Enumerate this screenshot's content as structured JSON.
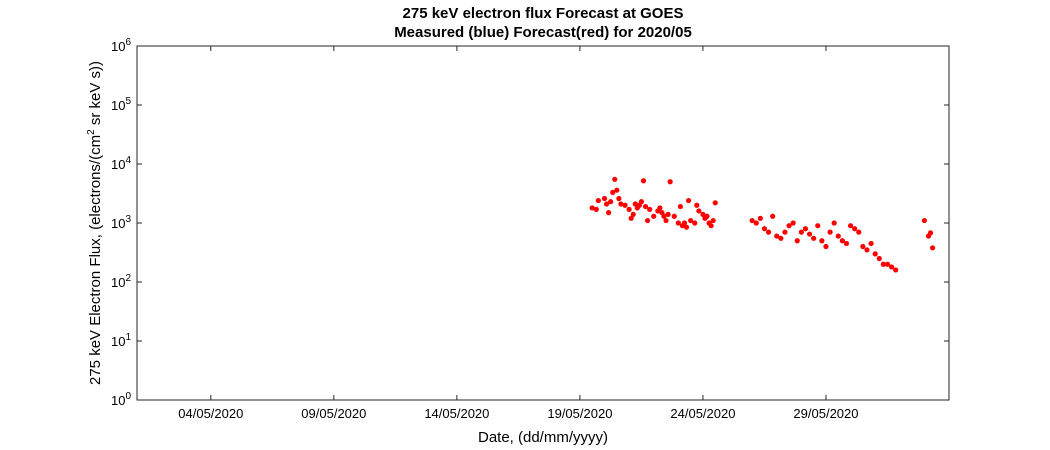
{
  "chart_data": {
    "type": "scatter",
    "title": "275 keV electron flux Forecast at GOES",
    "subtitle": "Measured (blue) Forecast(red) for 2020/05",
    "xlabel": "Date, (dd/mm/yyyy)",
    "ylabel_main": "275 keV Electron Flux, (electrons/(cm",
    "ylabel_sup": "2",
    "ylabel_rest": " sr keV s))",
    "y_scale": "log",
    "ylim": [
      1,
      1000000
    ],
    "xlim": [
      "2020-05-01",
      "2020-06-03"
    ],
    "x_ticks": [
      {
        "date": "2020-05-04",
        "label": "04/05/2020"
      },
      {
        "date": "2020-05-09",
        "label": "09/05/2020"
      },
      {
        "date": "2020-05-14",
        "label": "14/05/2020"
      },
      {
        "date": "2020-05-19",
        "label": "19/05/2020"
      },
      {
        "date": "2020-05-24",
        "label": "24/05/2020"
      },
      {
        "date": "2020-05-29",
        "label": "29/05/2020"
      }
    ],
    "y_ticks": [
      {
        "value": 1,
        "base": "10",
        "exp": "0"
      },
      {
        "value": 10,
        "base": "10",
        "exp": "1"
      },
      {
        "value": 100,
        "base": "10",
        "exp": "2"
      },
      {
        "value": 1000,
        "base": "10",
        "exp": "3"
      },
      {
        "value": 10000,
        "base": "10",
        "exp": "4"
      },
      {
        "value": 100000,
        "base": "10",
        "exp": "5"
      },
      {
        "value": 1000000,
        "base": "10",
        "exp": "6"
      }
    ],
    "grid": false,
    "marker_color": "#ff0000",
    "series": [
      {
        "marker": "dot",
        "x": [
          "2020-05-19 12:00",
          "2020-05-19 16:00",
          "2020-05-19 18:00",
          "2020-05-20 00:00",
          "2020-05-20 04:00",
          "2020-05-20 06:00",
          "2020-05-20 08:00",
          "2020-05-20 10:00",
          "2020-05-20 14:00",
          "2020-05-20 16:00",
          "2020-05-20 20:00",
          "2020-05-21 00:00",
          "2020-05-21 04:00",
          "2020-05-21 06:00",
          "2020-05-21 08:00",
          "2020-05-21 10:00",
          "2020-05-21 12:00",
          "2020-05-21 14:00",
          "2020-05-21 16:00",
          "2020-05-21 20:00",
          "2020-05-22 00:00",
          "2020-05-22 04:00",
          "2020-05-22 06:00",
          "2020-05-22 08:00",
          "2020-05-22 10:00",
          "2020-05-22 12:00",
          "2020-05-22 16:00",
          "2020-05-22 20:00",
          "2020-05-23 00:00",
          "2020-05-23 04:00",
          "2020-05-23 06:00",
          "2020-05-23 08:00",
          "2020-05-23 12:00",
          "2020-05-23 16:00",
          "2020-05-23 20:00",
          "2020-05-24 00:00",
          "2020-05-24 02:00",
          "2020-05-24 06:00",
          "2020-05-24 08:00",
          "2020-05-24 10:00",
          "2020-05-24 12:00",
          "2020-05-20 02:00",
          "2020-05-20 12:00",
          "2020-05-21 02:00",
          "2020-05-21 18:00",
          "2020-05-22 14:00",
          "2020-05-23 02:00",
          "2020-05-23 10:00",
          "2020-05-23 18:00",
          "2020-05-24 04:00",
          "2020-05-26 00:00",
          "2020-05-26 04:00",
          "2020-05-26 08:00",
          "2020-05-26 12:00",
          "2020-05-26 16:00",
          "2020-05-26 20:00",
          "2020-05-27 00:00",
          "2020-05-27 04:00",
          "2020-05-27 08:00",
          "2020-05-27 12:00",
          "2020-05-27 16:00",
          "2020-05-27 20:00",
          "2020-05-28 00:00",
          "2020-05-28 04:00",
          "2020-05-28 08:00",
          "2020-05-28 12:00",
          "2020-05-28 16:00",
          "2020-05-28 20:00",
          "2020-05-29 00:00",
          "2020-05-29 04:00",
          "2020-05-29 08:00",
          "2020-05-29 12:00",
          "2020-05-29 16:00",
          "2020-05-29 20:00",
          "2020-05-30 00:00",
          "2020-05-30 04:00",
          "2020-05-30 08:00",
          "2020-05-30 12:00",
          "2020-05-30 16:00",
          "2020-05-30 20:00",
          "2020-05-31 00:00",
          "2020-05-31 04:00",
          "2020-05-31 08:00",
          "2020-05-31 12:00",
          "2020-05-31 16:00",
          "2020-05-31 20:00",
          "2020-06-02 00:00",
          "2020-06-02 04:00",
          "2020-06-02 06:00",
          "2020-06-02 08:00"
        ],
        "y": [
          1800,
          1700,
          2400,
          2600,
          1500,
          2300,
          3300,
          5500,
          2600,
          2100,
          2000,
          1700,
          1400,
          2100,
          1800,
          2000,
          2300,
          5200,
          1900,
          1700,
          1300,
          1600,
          1800,
          1500,
          1300,
          1100,
          5000,
          1300,
          1000,
          900,
          1000,
          850,
          1100,
          1000,
          1600,
          1400,
          1200,
          1000,
          900,
          1100,
          2200,
          2100,
          3600,
          1200,
          1100,
          1400,
          1900,
          2400,
          2000,
          1300,
          1100,
          1000,
          1200,
          800,
          700,
          1300,
          600,
          550,
          700,
          900,
          1000,
          500,
          700,
          800,
          650,
          550,
          900,
          500,
          400,
          700,
          1000,
          600,
          500,
          450,
          900,
          800,
          700,
          400,
          350,
          450,
          300,
          250,
          200,
          200,
          180,
          160,
          1100,
          600,
          680,
          380
        ]
      }
    ]
  }
}
